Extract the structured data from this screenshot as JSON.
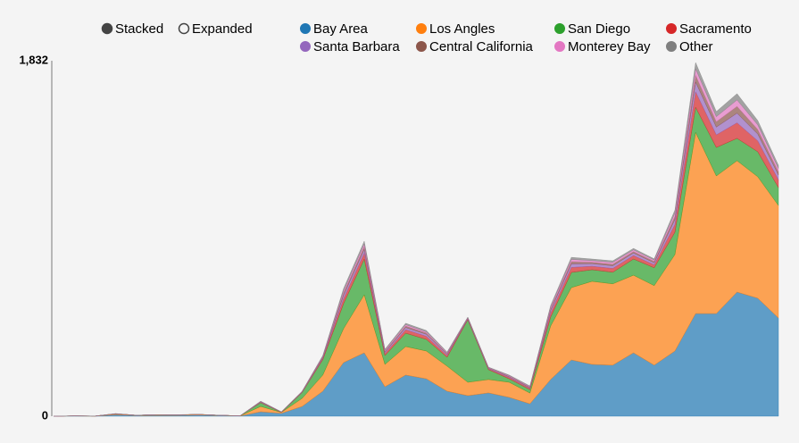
{
  "chart_data": {
    "type": "stacked_area",
    "controls": [
      "Stacked",
      "Expanded"
    ],
    "categories": [
      null,
      null,
      null,
      null,
      null,
      null,
      null,
      null,
      null,
      null,
      null,
      null,
      null,
      null,
      null,
      null,
      null,
      null,
      null,
      null,
      null,
      null,
      null,
      null,
      null,
      null,
      null,
      null,
      null,
      null,
      null,
      null,
      null,
      null,
      null,
      null
    ],
    "ylim": [
      0,
      1832
    ],
    "yticks": [
      0,
      {
        "value": 1832,
        "label": "1,832"
      }
    ],
    "series": [
      {
        "name": "Bay Area",
        "color": "#1f77b4",
        "values": [
          0,
          1,
          0,
          8,
          3,
          4,
          4,
          6,
          3,
          1,
          23,
          15,
          50,
          129,
          276,
          327,
          152,
          212,
          193,
          129,
          106,
          120,
          97,
          64,
          189,
          290,
          267,
          263,
          327,
          263,
          336,
          529,
          529,
          640,
          608,
          506
        ]
      },
      {
        "name": "Los Angles",
        "color": "#ff7f0e",
        "values": [
          0,
          1,
          1,
          4,
          2,
          4,
          3,
          3,
          2,
          1,
          27,
          5,
          42,
          83,
          175,
          299,
          115,
          147,
          143,
          129,
          69,
          69,
          78,
          55,
          276,
          373,
          428,
          419,
          400,
          410,
          497,
          934,
          709,
          677,
          626,
          580
        ]
      },
      {
        "name": "San Diego",
        "color": "#2ca02c",
        "values": [
          0,
          0,
          0,
          0,
          0,
          0,
          0,
          0,
          0,
          0,
          20,
          0,
          30,
          80,
          129,
          184,
          46,
          69,
          60,
          46,
          322,
          51,
          18,
          18,
          46,
          78,
          60,
          60,
          83,
          92,
          115,
          129,
          147,
          115,
          129,
          92
        ]
      },
      {
        "name": "Sacramento",
        "color": "#d62728",
        "values": [
          0,
          0,
          0,
          0,
          0,
          0,
          0,
          0,
          0,
          0,
          2,
          1,
          2,
          6,
          25,
          30,
          10,
          18,
          16,
          9,
          4,
          4,
          6,
          6,
          20,
          26,
          18,
          20,
          18,
          15,
          40,
          80,
          65,
          80,
          56,
          40
        ]
      },
      {
        "name": "Santa Barbara",
        "color": "#9467bd",
        "values": [
          0,
          0,
          0,
          1,
          0,
          0,
          0,
          0,
          0,
          0,
          2,
          0,
          2,
          5,
          18,
          20,
          7,
          11,
          10,
          6,
          3,
          3,
          4,
          4,
          14,
          18,
          13,
          13,
          13,
          11,
          25,
          50,
          40,
          50,
          35,
          25
        ]
      },
      {
        "name": "Central California",
        "color": "#8c564b",
        "values": [
          0,
          0,
          0,
          0,
          0,
          0,
          0,
          0,
          0,
          0,
          1,
          1,
          1,
          3,
          12,
          14,
          5,
          8,
          7,
          4,
          2,
          2,
          3,
          3,
          9,
          12,
          8,
          9,
          8,
          7,
          17,
          35,
          28,
          35,
          24,
          17
        ]
      },
      {
        "name": "Monterey Bay",
        "color": "#e377c2",
        "values": [
          0,
          0,
          0,
          0,
          0,
          0,
          0,
          0,
          0,
          0,
          1,
          0,
          1,
          3,
          11,
          14,
          5,
          7,
          6,
          4,
          2,
          2,
          3,
          3,
          9,
          11,
          8,
          9,
          8,
          7,
          17,
          33,
          26,
          33,
          23,
          17
        ]
      },
      {
        "name": "Other",
        "color": "#7f7f7f",
        "values": [
          0,
          0,
          0,
          1,
          0,
          0,
          1,
          1,
          0,
          0,
          2,
          1,
          1,
          4,
          12,
          14,
          5,
          7,
          7,
          4,
          3,
          2,
          3,
          3,
          8,
          11,
          8,
          8,
          8,
          6,
          16,
          33,
          26,
          32,
          23,
          16
        ]
      }
    ]
  }
}
